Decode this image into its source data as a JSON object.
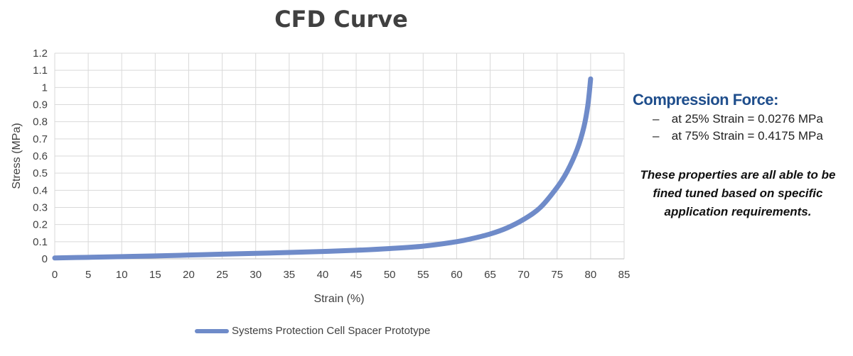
{
  "chart_data": {
    "type": "line",
    "title": "CFD Curve",
    "xlabel": "Strain (%)",
    "ylabel": "Stress (MPa)",
    "xlim": [
      0,
      85
    ],
    "ylim": [
      0,
      1.2
    ],
    "xticks": [
      "0",
      "5",
      "10",
      "15",
      "20",
      "25",
      "30",
      "35",
      "40",
      "45",
      "50",
      "55",
      "60",
      "65",
      "70",
      "75",
      "80",
      "85"
    ],
    "yticks": [
      "0",
      "0.1",
      "0.2",
      "0.3",
      "0.4",
      "0.5",
      "0.6",
      "0.7",
      "0.8",
      "0.9",
      "1",
      "1.1",
      "1.2"
    ],
    "grid": true,
    "legend_position": "bottom",
    "series": [
      {
        "name": "Systems Protection Cell Spacer Prototype",
        "color": "#6f8bc9",
        "x": [
          0,
          5,
          10,
          15,
          20,
          25,
          30,
          35,
          40,
          45,
          50,
          55,
          60,
          62.5,
          65,
          67.5,
          70,
          72.5,
          75,
          76.5,
          78,
          79,
          79.6,
          80
        ],
        "y": [
          0.005,
          0.009,
          0.013,
          0.017,
          0.022,
          0.0276,
          0.032,
          0.037,
          0.043,
          0.05,
          0.06,
          0.074,
          0.1,
          0.12,
          0.145,
          0.18,
          0.23,
          0.3,
          0.4175,
          0.51,
          0.64,
          0.77,
          0.9,
          1.05
        ]
      }
    ]
  },
  "side_panel": {
    "heading": "Compression Force:",
    "items": [
      {
        "dash": "–",
        "text": "at 25% Strain = 0.0276 MPa"
      },
      {
        "dash": "–",
        "text": "at 75% Strain = 0.4175 MPa"
      }
    ],
    "note": "These properties are all able to be fined tuned based on specific application requirements."
  }
}
